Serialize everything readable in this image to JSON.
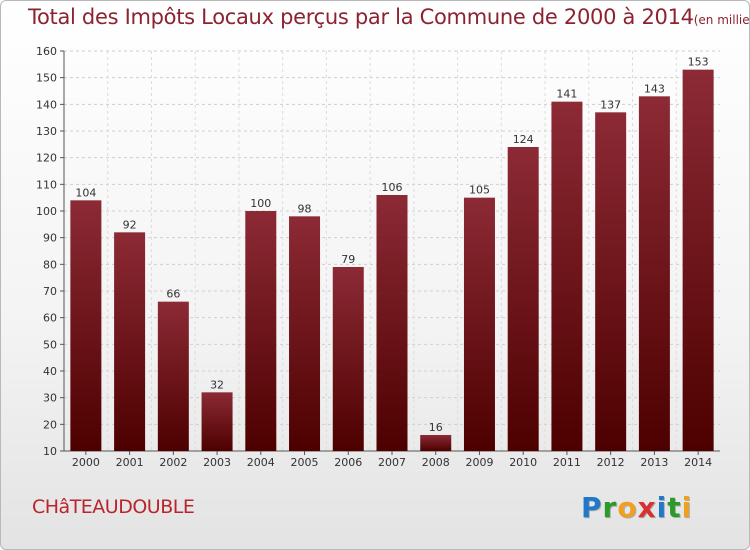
{
  "title": "Total des Impôts Locaux perçus par la Commune de 2000 à 2014",
  "title_unit": "(en milliers d'€)",
  "commune": "CHâTEAUDOUBLE",
  "logo": {
    "text": "Proxiti",
    "letters": [
      "P",
      "r",
      "o",
      "x",
      "i",
      "t",
      "i"
    ],
    "colors": [
      "#1f78c8",
      "#2a9a2a",
      "#f0a020",
      "#d93030",
      "#1f78c8",
      "#2a9a2a",
      "#f0a020"
    ]
  },
  "colors": {
    "bar_top": "#8c2a35",
    "bar_bottom": "#4d0000",
    "title": "#8b2330",
    "commune": "#b8252d"
  },
  "chart_data": {
    "type": "bar",
    "title": "Total des Impôts Locaux perçus par la Commune de 2000 à 2014",
    "ylabel": "en milliers d'€",
    "xlabel": "",
    "categories": [
      "2000",
      "2001",
      "2002",
      "2003",
      "2004",
      "2005",
      "2006",
      "2007",
      "2008",
      "2009",
      "2010",
      "2011",
      "2012",
      "2013",
      "2014"
    ],
    "values": [
      104,
      92,
      66,
      32,
      100,
      98,
      79,
      106,
      16,
      105,
      124,
      141,
      137,
      143,
      153
    ],
    "ylim": [
      10,
      160
    ],
    "yticks": [
      10,
      20,
      30,
      40,
      50,
      60,
      70,
      80,
      90,
      100,
      110,
      120,
      130,
      140,
      150,
      160
    ],
    "grid": true
  }
}
